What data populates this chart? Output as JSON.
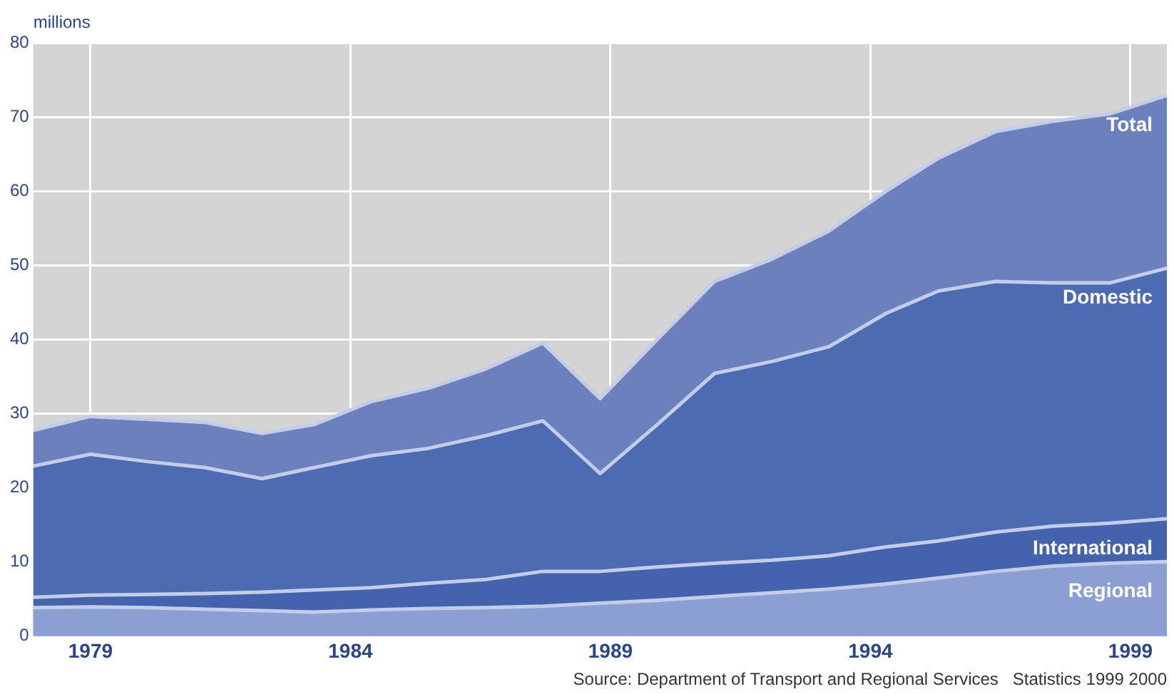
{
  "chart_data": {
    "type": "area",
    "ylabel": "millions",
    "x": [
      1977.9,
      1979.0,
      1980.1,
      1981.2,
      1982.3,
      1983.3,
      1984.4,
      1985.5,
      1986.6,
      1987.7,
      1988.8,
      1989.9,
      1991.0,
      1992.1,
      1993.2,
      1994.3,
      1995.3,
      1996.4,
      1997.5,
      1998.6,
      1999.7
    ],
    "series": [
      {
        "name": "Total",
        "color": "#6b80bd",
        "values": [
          27.7,
          29.6,
          29.2,
          28.8,
          27.3,
          28.5,
          31.6,
          33.4,
          36,
          39.5,
          32,
          40,
          47.8,
          50.8,
          54.6,
          60,
          64.4,
          68,
          69.4,
          70.4,
          72.9
        ]
      },
      {
        "name": "Domestic",
        "color": "#4d6bb2",
        "values": [
          22.9,
          24.5,
          23.5,
          22.7,
          21.2,
          22.7,
          24.3,
          25.3,
          27,
          29,
          21.9,
          28.5,
          35.4,
          37,
          39,
          43.5,
          46.5,
          47.8,
          47.6,
          47.6,
          49.6
        ]
      },
      {
        "name": "International",
        "color": "#4563ad",
        "values": [
          5.2,
          5.5,
          5.6,
          5.7,
          5.9,
          6.2,
          6.5,
          7.1,
          7.6,
          8.7,
          8.7,
          9.3,
          9.8,
          10.2,
          10.8,
          12,
          12.8,
          14,
          14.8,
          15.2,
          15.8
        ]
      },
      {
        "name": "Regional",
        "color": "#8b9fd2",
        "values": [
          3.8,
          3.9,
          3.8,
          3.6,
          3.4,
          3.2,
          3.5,
          3.7,
          3.8,
          4.0,
          4.4,
          4.8,
          5.3,
          5.8,
          6.3,
          7,
          7.8,
          8.7,
          9.4,
          9.8,
          10
        ]
      }
    ],
    "xlim": [
      1977.9,
      1999.7
    ],
    "xticks": [
      1979,
      1984,
      1989,
      1994,
      1999
    ],
    "ylim": [
      0,
      80
    ],
    "yticks": [
      0,
      10,
      20,
      30,
      40,
      50,
      60,
      70,
      80
    ],
    "grid": true,
    "legend": false,
    "annotations": [
      "Source: Department of Transport and Regional Services   Statistics 1999 2000"
    ]
  }
}
